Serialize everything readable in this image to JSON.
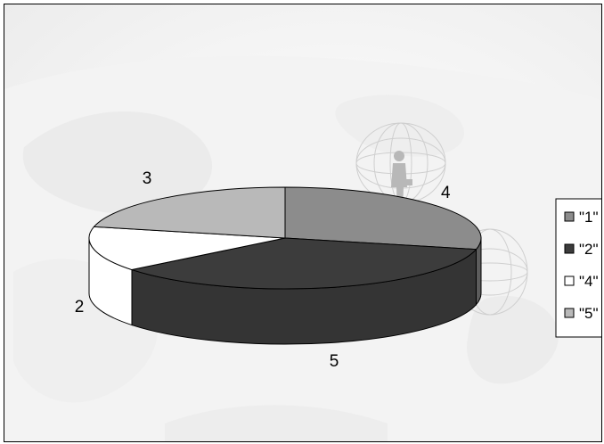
{
  "chart_data": {
    "type": "pie",
    "three_d": true,
    "legend_position": "right",
    "slices": [
      {
        "category": "1",
        "label": "4",
        "value": 4,
        "color": "#8c8c8c",
        "side_color": "#5c5c5c"
      },
      {
        "category": "2",
        "label": "5",
        "value": 5,
        "color": "#3c3c3c",
        "side_color": "#343434"
      },
      {
        "category": "4",
        "label": "2",
        "value": 2,
        "color": "#ffffff",
        "side_color": "#ffffff"
      },
      {
        "category": "5",
        "label": "3",
        "value": 3,
        "color": "#b9b9b9",
        "side_color": "#9a9a9a"
      }
    ],
    "legend": [
      "\"1\"",
      "\"2\"",
      "\"4\"",
      "\"5\""
    ],
    "background": "faded globe watermark with silhouette figure"
  }
}
